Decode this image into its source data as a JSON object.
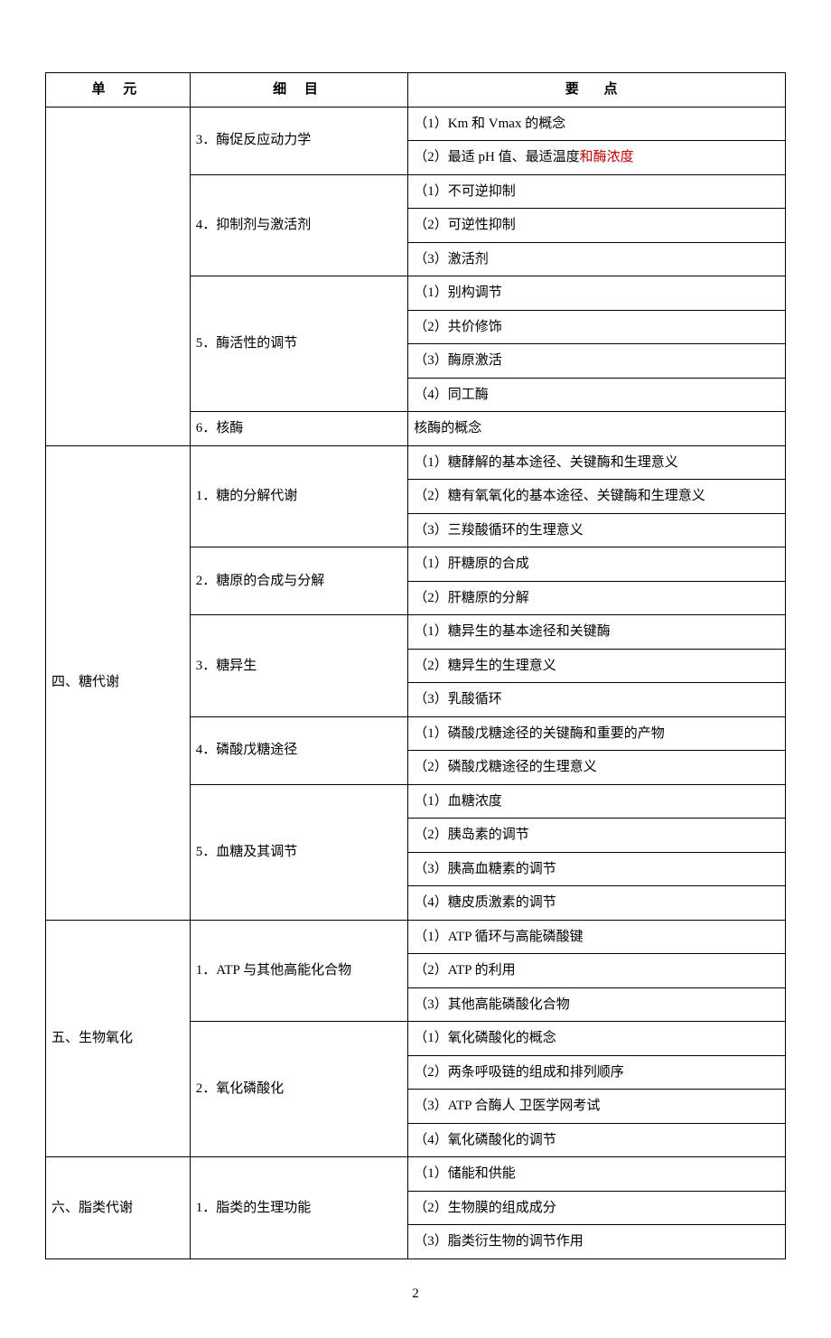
{
  "headers": {
    "unit": "单 元",
    "detail": "细 目",
    "point": "要  点"
  },
  "section_blank": {
    "unit": "",
    "items": [
      {
        "detail": "3．酶促反应动力学",
        "points": [
          {
            "text": "（1）Km 和 Vmax 的概念"
          },
          {
            "text": "（2）最适 pH 值、最适温度",
            "highlight": "和酶浓度"
          }
        ]
      },
      {
        "detail": "4．抑制剂与激活剂",
        "points": [
          {
            "text": "（1）不可逆抑制"
          },
          {
            "text": "（2）可逆性抑制"
          },
          {
            "text": "（3）激活剂"
          }
        ]
      },
      {
        "detail": "5．酶活性的调节",
        "points": [
          {
            "text": "（1）别构调节"
          },
          {
            "text": "（2）共价修饰"
          },
          {
            "text": "（3）酶原激活"
          },
          {
            "text": "（4）同工酶"
          }
        ]
      },
      {
        "detail": "6．核酶",
        "points": [
          {
            "text": "核酶的概念"
          }
        ]
      }
    ]
  },
  "section_4": {
    "unit": "四、糖代谢",
    "items": [
      {
        "detail": "1．糖的分解代谢",
        "points": [
          {
            "text": "（1）糖酵解的基本途径、关键酶和生理意义"
          },
          {
            "text": "（2）糖有氧氧化的基本途径、关键酶和生理意义"
          },
          {
            "text": "（3）三羧酸循环的生理意义"
          }
        ]
      },
      {
        "detail": "2．糖原的合成与分解",
        "points": [
          {
            "text": "（1）肝糖原的合成"
          },
          {
            "text": "（2）肝糖原的分解"
          }
        ]
      },
      {
        "detail": "3．糖异生",
        "points": [
          {
            "text": "（1）糖异生的基本途径和关键酶"
          },
          {
            "text": "（2）糖异生的生理意义"
          },
          {
            "text": "（3）乳酸循环"
          }
        ]
      },
      {
        "detail": "4．磷酸戊糖途径",
        "points": [
          {
            "text": "（1）磷酸戊糖途径的关键酶和重要的产物"
          },
          {
            "text": "（2）磷酸戊糖途径的生理意义"
          }
        ]
      },
      {
        "detail": "5．血糖及其调节",
        "points": [
          {
            "text": "（1）血糖浓度"
          },
          {
            "text": "（2）胰岛素的调节"
          },
          {
            "text": "（3）胰高血糖素的调节"
          },
          {
            "text": "（4）糖皮质激素的调节"
          }
        ]
      }
    ]
  },
  "section_5": {
    "unit": "五、生物氧化",
    "items": [
      {
        "detail": "1．ATP 与其他高能化合物",
        "points": [
          {
            "text": "（1）ATP 循环与高能磷酸键"
          },
          {
            "text": "（2）ATP 的利用"
          },
          {
            "text": "（3）其他高能磷酸化合物"
          }
        ]
      },
      {
        "detail": "2．氧化磷酸化",
        "points": [
          {
            "text": "（1）氧化磷酸化的概念"
          },
          {
            "text": "（2）两条呼吸链的组成和排列顺序"
          },
          {
            "text": "（3）ATP 合酶人 卫医学网考试"
          },
          {
            "text": "（4）氧化磷酸化的调节"
          }
        ]
      }
    ]
  },
  "section_6": {
    "unit": "六、脂类代谢",
    "items": [
      {
        "detail": "1．脂类的生理功能",
        "points": [
          {
            "text": "（1）储能和供能"
          },
          {
            "text": "（2）生物膜的组成成分"
          },
          {
            "text": "（3）脂类衍生物的调节作用"
          }
        ]
      }
    ]
  },
  "page_number": "2"
}
